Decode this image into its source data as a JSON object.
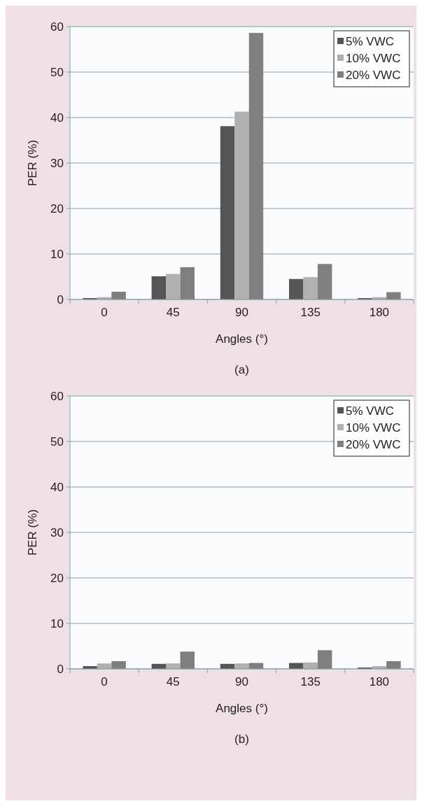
{
  "chart_data": [
    {
      "type": "bar",
      "categories": [
        "0",
        "45",
        "90",
        "135",
        "180"
      ],
      "xlabel": "Angles (°)",
      "ylabel": "PER (%)",
      "ylim": [
        0,
        60
      ],
      "yticks": [
        0,
        10,
        20,
        30,
        40,
        50,
        60
      ],
      "grid": "y",
      "legend": "top right",
      "annotations": [
        "(a)"
      ],
      "series": [
        {
          "name": "5% VWC",
          "color": "#555555",
          "values": [
            0.3,
            5.1,
            38.1,
            4.5,
            0.3
          ]
        },
        {
          "name": "10% VWC",
          "color": "#b0b0b0",
          "values": [
            0.5,
            5.6,
            41.3,
            4.9,
            0.5
          ]
        },
        {
          "name": "20% VWC",
          "color": "#7f7f7f",
          "values": [
            1.7,
            7.1,
            58.6,
            7.8,
            1.6
          ]
        }
      ]
    },
    {
      "type": "bar",
      "categories": [
        "0",
        "45",
        "90",
        "135",
        "180"
      ],
      "xlabel": "Angles (°)",
      "ylabel": "PER (%)",
      "ylim": [
        0,
        60
      ],
      "yticks": [
        0,
        10,
        20,
        30,
        40,
        50,
        60
      ],
      "grid": "y",
      "legend": "top right",
      "annotations": [
        "(b)"
      ],
      "series": [
        {
          "name": "5% VWC",
          "color": "#555555",
          "values": [
            0.6,
            1.1,
            1.1,
            1.3,
            0.3
          ]
        },
        {
          "name": "10% VWC",
          "color": "#b0b0b0",
          "values": [
            1.2,
            1.2,
            1.2,
            1.4,
            0.6
          ]
        },
        {
          "name": "20% VWC",
          "color": "#7f7f7f",
          "values": [
            1.7,
            3.8,
            1.3,
            4.1,
            1.7
          ]
        }
      ]
    }
  ]
}
